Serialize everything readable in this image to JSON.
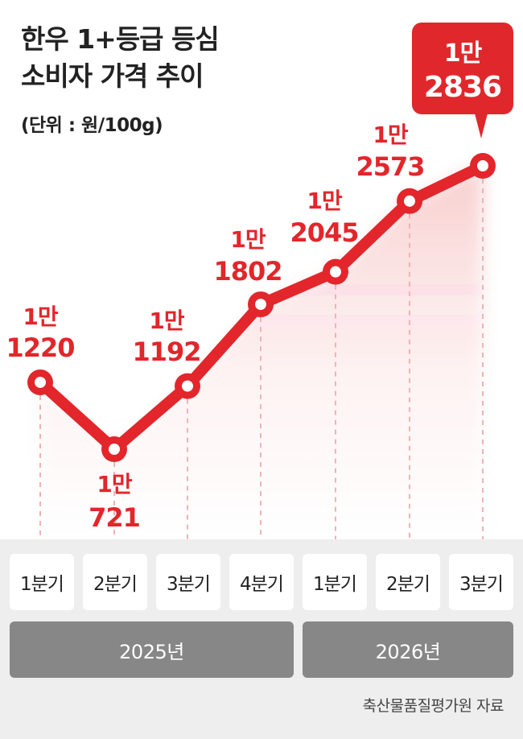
{
  "title_lines": [
    "한우 1+등급 등심",
    "소비자 가격 추이"
  ],
  "unit": "(단위 : 원/100g)",
  "quarters": [
    "1분기",
    "2분기",
    "3분기",
    "4분기",
    "1분기",
    "2분기",
    "3분기"
  ],
  "years": [
    "2025년",
    "2026년"
  ],
  "source": "축산물품질평가원 자료",
  "colors": {
    "line": "#e2262b",
    "label": "#e2262b",
    "callout_bg": "#e0282c",
    "band": "#eeeeee",
    "year_box": "#878787"
  },
  "chart_data": {
    "type": "line",
    "categories": [
      "2025년 1분기",
      "2025년 2분기",
      "2025년 3분기",
      "2025년 4분기",
      "2026년 1분기",
      "2026년 2분기",
      "2026년 3분기"
    ],
    "series": [
      {
        "values": [
          11220,
          10721,
          11192,
          11802,
          12045,
          12573,
          12836
        ]
      }
    ],
    "data_labels": [
      [
        "1만",
        "1220"
      ],
      [
        "1만",
        "721"
      ],
      [
        "1만",
        "1192"
      ],
      [
        "1만",
        "1802"
      ],
      [
        "1만",
        "2045"
      ],
      [
        "1만",
        "2573"
      ],
      [
        "1만",
        "2836"
      ]
    ],
    "highlight_last": true,
    "title": "한우 1+등급 등심 소비자 가격 추이",
    "ylabel": "원/100g"
  }
}
